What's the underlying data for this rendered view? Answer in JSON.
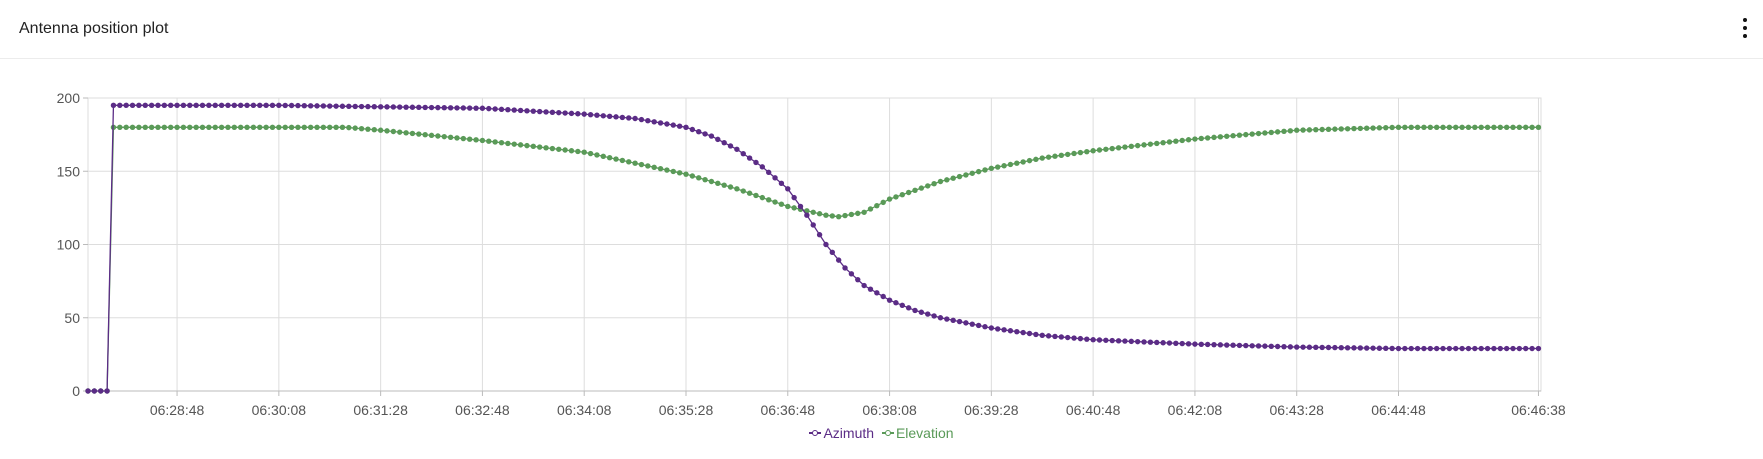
{
  "panel": {
    "title": "Antenna position plot",
    "menu_icon": "kebab-menu-icon"
  },
  "colors": {
    "azimuth": "#5b2c86",
    "elevation": "#5a9a58",
    "grid": "#dddddd",
    "axis": "#bbbbbb"
  },
  "chart_data": {
    "type": "line",
    "title": "",
    "xlabel": "",
    "ylabel": "",
    "ylim": [
      0,
      200
    ],
    "y_ticks": [
      0,
      50,
      100,
      150,
      200
    ],
    "x_ticks": [
      "06:28:48",
      "06:30:08",
      "06:31:28",
      "06:32:48",
      "06:34:08",
      "06:35:28",
      "06:36:48",
      "06:38:08",
      "06:39:28",
      "06:40:48",
      "06:42:08",
      "06:43:28",
      "06:44:48",
      "06:46:38"
    ],
    "x_range": [
      "06:27:38",
      "06:46:40"
    ],
    "grid": true,
    "legend_position": "bottom-center",
    "series": [
      {
        "name": "Azimuth",
        "x": [
          "06:27:38",
          "06:27:43",
          "06:27:48",
          "06:27:53",
          "06:27:58",
          "06:28:08",
          "06:28:48",
          "06:30:08",
          "06:31:28",
          "06:32:48",
          "06:34:08",
          "06:34:48",
          "06:35:28",
          "06:35:48",
          "06:36:08",
          "06:36:28",
          "06:36:48",
          "06:37:03",
          "06:37:18",
          "06:37:33",
          "06:37:48",
          "06:38:08",
          "06:38:28",
          "06:38:48",
          "06:39:28",
          "06:40:08",
          "06:40:48",
          "06:42:08",
          "06:43:28",
          "06:44:48",
          "06:46:40"
        ],
        "y": [
          0,
          0,
          0,
          0,
          195,
          195,
          195,
          195,
          194,
          193,
          189,
          186,
          180,
          174,
          165,
          153,
          138,
          120,
          100,
          84,
          72,
          62,
          55,
          50,
          43,
          38,
          35,
          32,
          30,
          29,
          29
        ]
      },
      {
        "name": "Elevation",
        "x": [
          "06:27:38",
          "06:27:43",
          "06:27:48",
          "06:27:53",
          "06:27:58",
          "06:28:08",
          "06:28:48",
          "06:30:08",
          "06:31:00",
          "06:31:28",
          "06:32:48",
          "06:34:08",
          "06:35:28",
          "06:36:08",
          "06:36:48",
          "06:37:18",
          "06:37:28",
          "06:37:48",
          "06:38:08",
          "06:38:48",
          "06:39:28",
          "06:40:08",
          "06:40:48",
          "06:42:08",
          "06:43:28",
          "06:44:48",
          "06:46:40"
        ],
        "y": [
          0,
          0,
          0,
          0,
          180,
          180,
          180,
          180,
          180,
          178,
          171,
          163,
          148,
          138,
          126,
          120,
          119,
          122,
          131,
          143,
          152,
          159,
          164,
          172,
          178,
          180,
          180
        ]
      }
    ]
  }
}
